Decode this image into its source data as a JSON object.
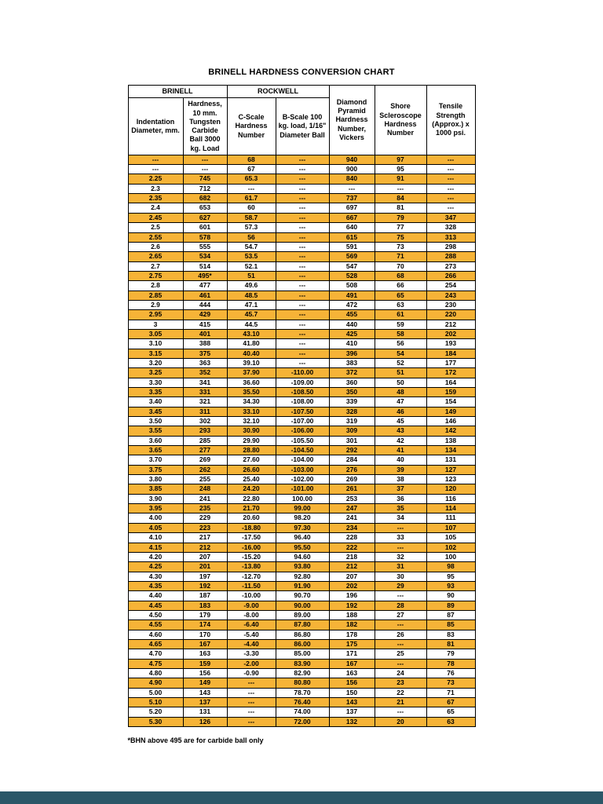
{
  "page": {
    "title": "BRINELL HARDNESS CONVERSION CHART",
    "footnote": "*BHN above 495 are for carbide ball only"
  },
  "colors": {
    "highlight": "#F6B337",
    "footer_bar": "#2B5768",
    "border": "#000000"
  },
  "table": {
    "group_headers": {
      "brinell": "BRINELL",
      "rockwell": "ROCKWELL"
    },
    "columns": {
      "indentation": "Indentation Diameter, mm.",
      "hardness": "Hardness, 10 mm. Tungsten Carbide Ball 3000 kg. Load",
      "c_scale": "C-Scale Hardness Number",
      "b_scale": "B-Scale 100 kg. load, 1/16\" Diameter Ball",
      "vickers": "Diamond Pyramid Hardness Number, Vickers",
      "shore": "Shore Scleroscope Hardness Number",
      "tensile": "Tensile Strength (Approx.) x 1000 psi."
    },
    "rows": [
      [
        "---",
        "---",
        "68",
        "---",
        "940",
        "97",
        "---"
      ],
      [
        "---",
        "---",
        "67",
        "---",
        "900",
        "95",
        "---"
      ],
      [
        "2.25",
        "745",
        "65.3",
        "---",
        "840",
        "91",
        "---"
      ],
      [
        "2.3",
        "712",
        "---",
        "---",
        "---",
        "---",
        "---"
      ],
      [
        "2.35",
        "682",
        "61.7",
        "---",
        "737",
        "84",
        "---"
      ],
      [
        "2.4",
        "653",
        "60",
        "---",
        "697",
        "81",
        "---"
      ],
      [
        "2.45",
        "627",
        "58.7",
        "---",
        "667",
        "79",
        "347"
      ],
      [
        "2.5",
        "601",
        "57.3",
        "---",
        "640",
        "77",
        "328"
      ],
      [
        "2.55",
        "578",
        "56",
        "---",
        "615",
        "75",
        "313"
      ],
      [
        "2.6",
        "555",
        "54.7",
        "---",
        "591",
        "73",
        "298"
      ],
      [
        "2.65",
        "534",
        "53.5",
        "---",
        "569",
        "71",
        "288"
      ],
      [
        "2.7",
        "514",
        "52.1",
        "---",
        "547",
        "70",
        "273"
      ],
      [
        "2.75",
        "495*",
        "51",
        "---",
        "528",
        "68",
        "266"
      ],
      [
        "2.8",
        "477",
        "49.6",
        "---",
        "508",
        "66",
        "254"
      ],
      [
        "2.85",
        "461",
        "48.5",
        "---",
        "491",
        "65",
        "243"
      ],
      [
        "2.9",
        "444",
        "47.1",
        "---",
        "472",
        "63",
        "230"
      ],
      [
        "2.95",
        "429",
        "45.7",
        "---",
        "455",
        "61",
        "220"
      ],
      [
        "3",
        "415",
        "44.5",
        "---",
        "440",
        "59",
        "212"
      ],
      [
        "3.05",
        "401",
        "43.10",
        "---",
        "425",
        "58",
        "202"
      ],
      [
        "3.10",
        "388",
        "41.80",
        "---",
        "410",
        "56",
        "193"
      ],
      [
        "3.15",
        "375",
        "40.40",
        "---",
        "396",
        "54",
        "184"
      ],
      [
        "3.20",
        "363",
        "39.10",
        "---",
        "383",
        "52",
        "177"
      ],
      [
        "3.25",
        "352",
        "37.90",
        "-110.00",
        "372",
        "51",
        "172"
      ],
      [
        "3.30",
        "341",
        "36.60",
        "-109.00",
        "360",
        "50",
        "164"
      ],
      [
        "3.35",
        "331",
        "35.50",
        "-108.50",
        "350",
        "48",
        "159"
      ],
      [
        "3.40",
        "321",
        "34.30",
        "-108.00",
        "339",
        "47",
        "154"
      ],
      [
        "3.45",
        "311",
        "33.10",
        "-107.50",
        "328",
        "46",
        "149"
      ],
      [
        "3.50",
        "302",
        "32.10",
        "-107.00",
        "319",
        "45",
        "146"
      ],
      [
        "3.55",
        "293",
        "30.90",
        "-106.00",
        "309",
        "43",
        "142"
      ],
      [
        "3.60",
        "285",
        "29.90",
        "-105.50",
        "301",
        "42",
        "138"
      ],
      [
        "3.65",
        "277",
        "28.80",
        "-104.50",
        "292",
        "41",
        "134"
      ],
      [
        "3.70",
        "269",
        "27.60",
        "-104.00",
        "284",
        "40",
        "131"
      ],
      [
        "3.75",
        "262",
        "26.60",
        "-103.00",
        "276",
        "39",
        "127"
      ],
      [
        "3.80",
        "255",
        "25.40",
        "-102.00",
        "269",
        "38",
        "123"
      ],
      [
        "3.85",
        "248",
        "24.20",
        "-101.00",
        "261",
        "37",
        "120"
      ],
      [
        "3.90",
        "241",
        "22.80",
        "100.00",
        "253",
        "36",
        "116"
      ],
      [
        "3.95",
        "235",
        "21.70",
        "99.00",
        "247",
        "35",
        "114"
      ],
      [
        "4.00",
        "229",
        "20.60",
        "98.20",
        "241",
        "34",
        "111"
      ],
      [
        "4.05",
        "223",
        "-18.80",
        "97.30",
        "234",
        "---",
        "107"
      ],
      [
        "4.10",
        "217",
        "-17.50",
        "96.40",
        "228",
        "33",
        "105"
      ],
      [
        "4.15",
        "212",
        "-16.00",
        "95.50",
        "222",
        "---",
        "102"
      ],
      [
        "4.20",
        "207",
        "-15.20",
        "94.60",
        "218",
        "32",
        "100"
      ],
      [
        "4.25",
        "201",
        "-13.80",
        "93.80",
        "212",
        "31",
        "98"
      ],
      [
        "4.30",
        "197",
        "-12.70",
        "92.80",
        "207",
        "30",
        "95"
      ],
      [
        "4.35",
        "192",
        "-11.50",
        "91.90",
        "202",
        "29",
        "93"
      ],
      [
        "4.40",
        "187",
        "-10.00",
        "90.70",
        "196",
        "---",
        "90"
      ],
      [
        "4.45",
        "183",
        "-9.00",
        "90.00",
        "192",
        "28",
        "89"
      ],
      [
        "4.50",
        "179",
        "-8.00",
        "89.00",
        "188",
        "27",
        "87"
      ],
      [
        "4.55",
        "174",
        "-6.40",
        "87.80",
        "182",
        "---",
        "85"
      ],
      [
        "4.60",
        "170",
        "-5.40",
        "86.80",
        "178",
        "26",
        "83"
      ],
      [
        "4.65",
        "167",
        "-4.40",
        "86.00",
        "175",
        "---",
        "81"
      ],
      [
        "4.70",
        "163",
        "-3.30",
        "85.00",
        "171",
        "25",
        "79"
      ],
      [
        "4.75",
        "159",
        "-2.00",
        "83.90",
        "167",
        "---",
        "78"
      ],
      [
        "4.80",
        "156",
        "-0.90",
        "82.90",
        "163",
        "24",
        "76"
      ],
      [
        "4.90",
        "149",
        "---",
        "80.80",
        "156",
        "23",
        "73"
      ],
      [
        "5.00",
        "143",
        "---",
        "78.70",
        "150",
        "22",
        "71"
      ],
      [
        "5.10",
        "137",
        "---",
        "76.40",
        "143",
        "21",
        "67"
      ],
      [
        "5.20",
        "131",
        "---",
        "74.00",
        "137",
        "---",
        "65"
      ],
      [
        "5.30",
        "126",
        "---",
        "72.00",
        "132",
        "20",
        "63"
      ]
    ]
  }
}
